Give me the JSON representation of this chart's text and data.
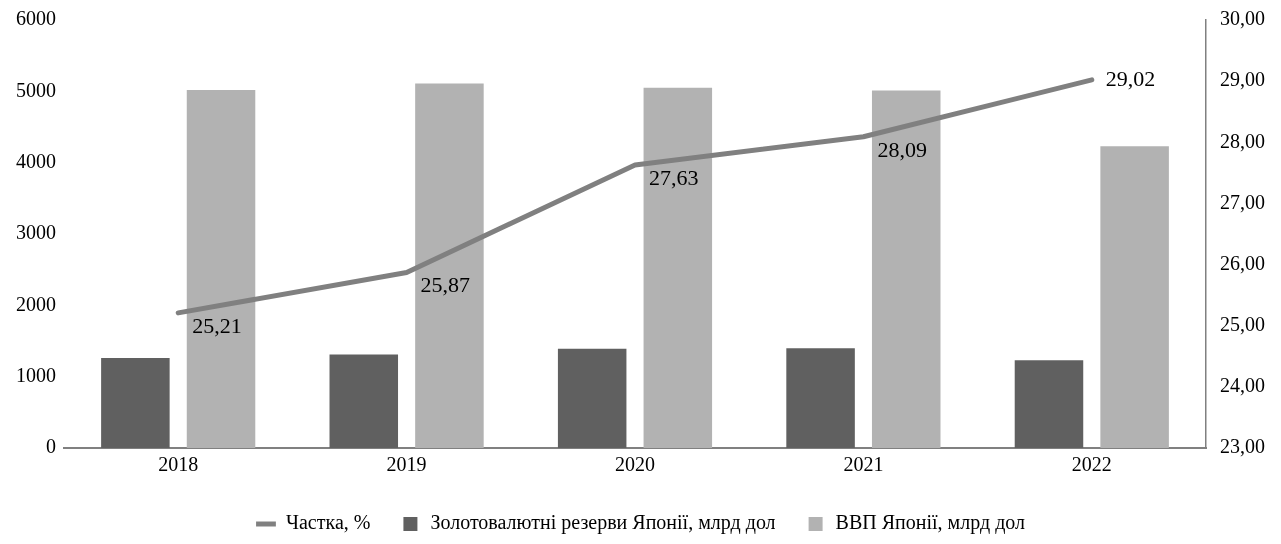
{
  "chart_data": {
    "type": "bar",
    "categories": [
      "2018",
      "2019",
      "2020",
      "2021",
      "2022"
    ],
    "series": [
      {
        "name": "Золотовалютні резерви Японії, млрд дол",
        "color": "#606060",
        "values": [
          1260,
          1310,
          1390,
          1400,
          1230
        ]
      },
      {
        "name": "ВВП Японії, млрд дол",
        "color": "#b2b2b2",
        "values": [
          5020,
          5110,
          5050,
          5010,
          4230
        ]
      },
      {
        "name": "Частка, %",
        "type": "line",
        "axis": "y2",
        "color": "#808080",
        "values": [
          25.21,
          25.87,
          27.63,
          28.09,
          29.02
        ],
        "value_labels": [
          "25,21",
          "25,87",
          "27,63",
          "28,09",
          "29,02"
        ]
      }
    ],
    "ylim": [
      0,
      6000
    ],
    "yticks": [
      0,
      1000,
      2000,
      3000,
      4000,
      5000,
      6000
    ],
    "y2lim": [
      23,
      30
    ],
    "y2ticks": [
      {
        "value": 23,
        "label": "23,00"
      },
      {
        "value": 24,
        "label": "24,00"
      },
      {
        "value": 25,
        "label": "25,00"
      },
      {
        "value": 26,
        "label": "26,00"
      },
      {
        "value": 27,
        "label": "27,00"
      },
      {
        "value": 28,
        "label": "28,00"
      },
      {
        "value": 29,
        "label": "29,00"
      },
      {
        "value": 30,
        "label": "30,00"
      }
    ],
    "legend": "bottom",
    "marker": "none",
    "grid": false
  }
}
